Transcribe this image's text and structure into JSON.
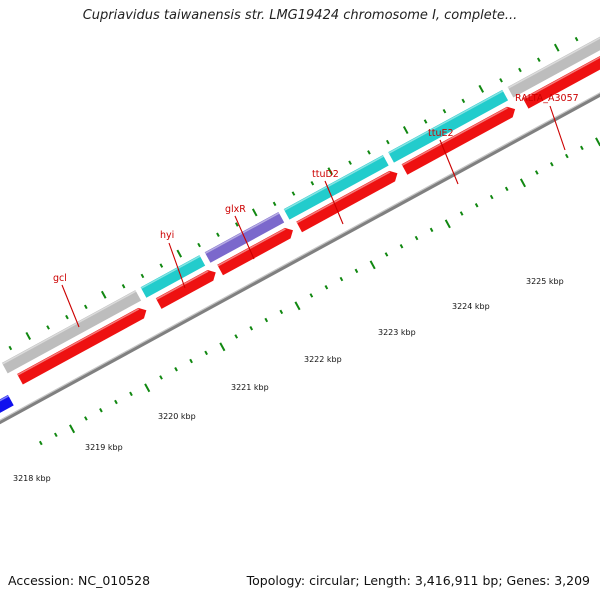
{
  "title": "Cupriavidus taiwanensis str. LMG19424 chromosome I, complete...",
  "footer": {
    "accession": "Accession: NC_010528",
    "summary": "Topology: circular; Length: 3,416,911 bp; Genes: 3,209"
  },
  "scale_labels": [
    "3218 kbp",
    "3219 kbp",
    "3220 kbp",
    "3221 kbp",
    "3222 kbp",
    "3223 kbp",
    "3224 kbp",
    "3225 kbp"
  ],
  "gene_labels": [
    "gcl",
    "hyi",
    "glxR",
    "ttuD2",
    "ttuE2",
    "RALTA_A3057"
  ],
  "colors": {
    "backbone": "#808080",
    "cds": "#ee1111",
    "gene_gray": "#bdbdbd",
    "gene_cyan": "#22cccc",
    "gene_purple": "#7b68cc",
    "gene_blue": "#1010ee",
    "tick": "#118811",
    "label": "#cc0000"
  }
}
